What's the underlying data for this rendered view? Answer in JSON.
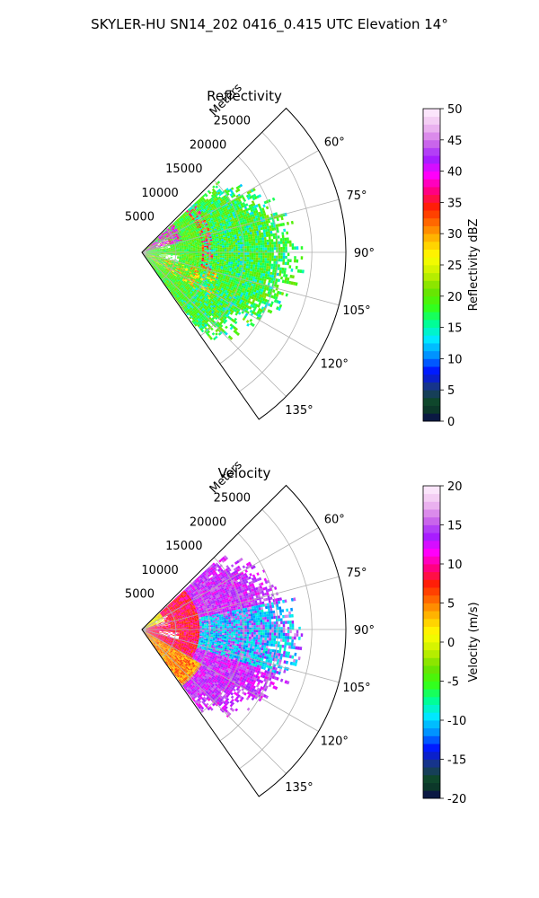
{
  "title": "SKYLER-HU  SN14_202  0416_0.415 UTC Elevation 14°",
  "chart_data": [
    {
      "type": "heatmap",
      "title": "Reflectivity",
      "projection": "polar sector (azimuth clockwise from north)",
      "azimuth_range_deg": [
        45,
        145
      ],
      "range_lim_m": [
        0,
        30000
      ],
      "range_axis_label": "Meters",
      "range_ticks": [
        "5000",
        "10000",
        "15000",
        "20000",
        "25000"
      ],
      "angle_ticks": [
        "60°",
        "75°",
        "90°",
        "105°",
        "120°",
        "135°"
      ],
      "grid": true,
      "colorbar": {
        "label": "Reflectivity dBZ",
        "vmin": 0,
        "vmax": 50,
        "ticks": [
          "0",
          "5",
          "10",
          "15",
          "20",
          "25",
          "30",
          "35",
          "40",
          "45",
          "50"
        ],
        "stops": [
          "#0a0a50",
          "#0d4a1a",
          "#1a3a78",
          "#0010ff",
          "#0090ff",
          "#00e8ff",
          "#00ff90",
          "#38ff10",
          "#70e000",
          "#c8f000",
          "#ffff00",
          "#ffc000",
          "#ff7000",
          "#ff2000",
          "#ff0080",
          "#ff00ff",
          "#a020ff",
          "#d070e8",
          "#f0c0f0",
          "#fff0ff"
        ]
      },
      "echo_summary": {
        "dominant_range_dBZ": [
          15,
          25
        ],
        "max_dBZ_near": [
          35,
          45
        ],
        "max_extent_m": 23000
      }
    },
    {
      "type": "heatmap",
      "title": "Velocity",
      "projection": "polar sector (azimuth clockwise from north)",
      "azimuth_range_deg": [
        45,
        145
      ],
      "range_lim_m": [
        0,
        30000
      ],
      "range_axis_label": "Meters",
      "range_ticks": [
        "5000",
        "10000",
        "15000",
        "20000",
        "25000"
      ],
      "angle_ticks": [
        "60°",
        "75°",
        "90°",
        "105°",
        "120°",
        "135°"
      ],
      "grid": true,
      "colorbar": {
        "label": "Velocity (m/s)",
        "vmin": -20,
        "vmax": 20,
        "ticks": [
          "-20",
          "-15",
          "-10",
          "-5",
          "0",
          "5",
          "10",
          "15",
          "20"
        ],
        "stops": [
          "#0a0a50",
          "#0d4a1a",
          "#1a3a78",
          "#0010ff",
          "#0090ff",
          "#00e8ff",
          "#00ff90",
          "#38ff10",
          "#70e000",
          "#c8f000",
          "#ffff00",
          "#ffc000",
          "#ff7000",
          "#ff2000",
          "#ff0080",
          "#ff00ff",
          "#a020ff",
          "#d070e8",
          "#f0c0f0",
          "#fff0ff"
        ]
      },
      "echo_summary": {
        "near_range_m_per_s": [
          5,
          12
        ],
        "far_range_m_per_s": [
          -12,
          15
        ],
        "max_extent_m": 23000
      }
    }
  ]
}
